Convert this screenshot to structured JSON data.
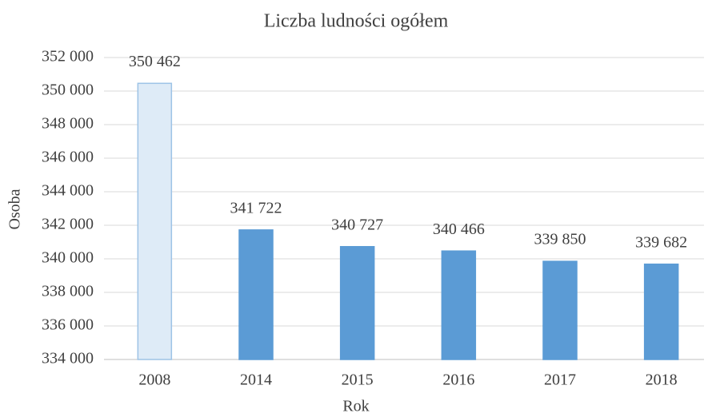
{
  "chart_data": {
    "type": "bar",
    "title": "Liczba ludności ogółem",
    "xlabel": "Rok",
    "ylabel": "Osoba",
    "categories": [
      "2008",
      "2014",
      "2015",
      "2016",
      "2017",
      "2018"
    ],
    "values": [
      350462,
      341722,
      340727,
      340466,
      339850,
      339682
    ],
    "value_labels": [
      "350 462",
      "341 722",
      "340 727",
      "340 466",
      "339 850",
      "339 682"
    ],
    "colors": [
      "#deebf7",
      "#5b9bd5",
      "#5b9bd5",
      "#5b9bd5",
      "#5b9bd5",
      "#5b9bd5"
    ],
    "edgecolors": [
      "#9dc3e6",
      "#5b9bd5",
      "#5b9bd5",
      "#5b9bd5",
      "#5b9bd5",
      "#5b9bd5"
    ],
    "ylim": [
      334000,
      352000
    ],
    "yticks": [
      {
        "value": 334000,
        "label": "334 000"
      },
      {
        "value": 336000,
        "label": "336 000"
      },
      {
        "value": 338000,
        "label": "338 000"
      },
      {
        "value": 340000,
        "label": "340 000"
      },
      {
        "value": 342000,
        "label": "342 000"
      },
      {
        "value": 344000,
        "label": "344 000"
      },
      {
        "value": 346000,
        "label": "346 000"
      },
      {
        "value": 348000,
        "label": "348 000"
      },
      {
        "value": 350000,
        "label": "350 000"
      },
      {
        "value": 352000,
        "label": "352 000"
      }
    ],
    "grid": true
  }
}
